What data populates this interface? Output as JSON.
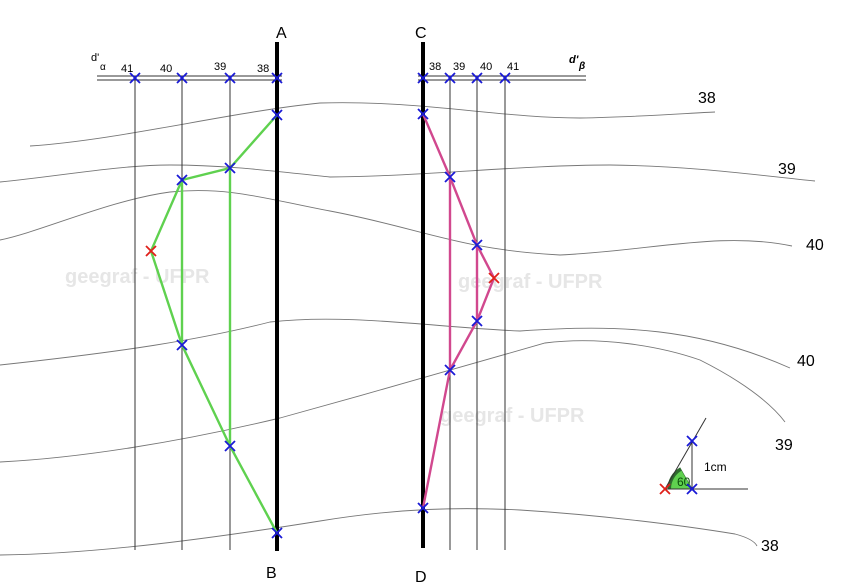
{
  "points": {
    "A": "A",
    "B": "B",
    "C": "C",
    "D": "D"
  },
  "trace_alpha": {
    "label_main": "d'",
    "label_sub": "α",
    "ticks": [
      "41",
      "40",
      "39",
      "38"
    ]
  },
  "trace_beta": {
    "label_main": "d'",
    "label_sub": "β",
    "ticks": [
      "38",
      "39",
      "40",
      "41"
    ]
  },
  "contour_labels": {
    "c1": "38",
    "c2": "39",
    "c3": "40",
    "c4": "40",
    "c5": "39",
    "c6": "38"
  },
  "angle_legend": {
    "angle": "60",
    "length": "1cm"
  },
  "watermark": "geegraf - UFPR",
  "colors": {
    "profile_alpha": "#5fd14f",
    "profile_beta": "#d1488e",
    "marker": "#1a1ad6",
    "extreme_marker": "#e0201a",
    "contour": "#777777"
  }
}
